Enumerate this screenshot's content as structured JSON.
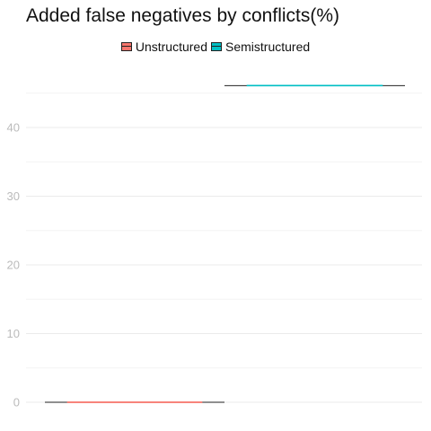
{
  "chart_data": {
    "type": "box",
    "title": "Added false negatives by conflicts(%)",
    "xlabel": "",
    "ylabel": "",
    "ylim": [
      -2,
      50
    ],
    "y_ticks": [
      0,
      10,
      20,
      30,
      40
    ],
    "grid": true,
    "legend_position": "top",
    "series": [
      {
        "name": "Unstructured",
        "color": "#F8766D",
        "min": 0,
        "q1": 0,
        "median": 0,
        "q3": 0,
        "max": 0,
        "whisker_low": 0,
        "whisker_high": 0
      },
      {
        "name": "Semistructured",
        "color": "#00BFC4",
        "min": 46.1,
        "q1": 46.1,
        "median": 46.1,
        "q3": 46.1,
        "max": 46.1,
        "whisker_low": 46.1,
        "whisker_high": 46.1
      }
    ]
  }
}
